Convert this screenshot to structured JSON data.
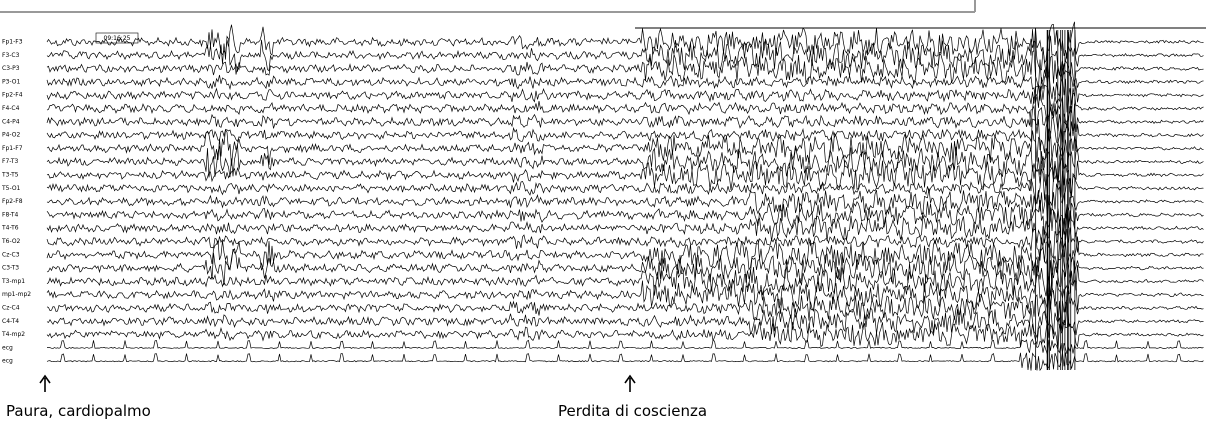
{
  "channels": [
    "Fp1-F3",
    "F3-C3",
    "C3-P3",
    "P3-O1",
    "Fp2-F4",
    "F4-C4",
    "C4-P4",
    "P4-O2",
    "Fp1-F7",
    "F7-T3",
    "T3-T5",
    "T5-O1",
    "Fp2-F8",
    "F8-T4",
    "T4-T6",
    "T6-O2",
    "Cz-C3",
    "C3-T3",
    "T3-mp1",
    "mp1-mp2",
    "Cz-C4",
    "C4-T4",
    "T4-mp2",
    "ecg",
    "ecg"
  ],
  "timestamp": "09:16:25",
  "annotations": [
    "Paura, cardiopalmo",
    "Perdita di coscienza"
  ]
}
